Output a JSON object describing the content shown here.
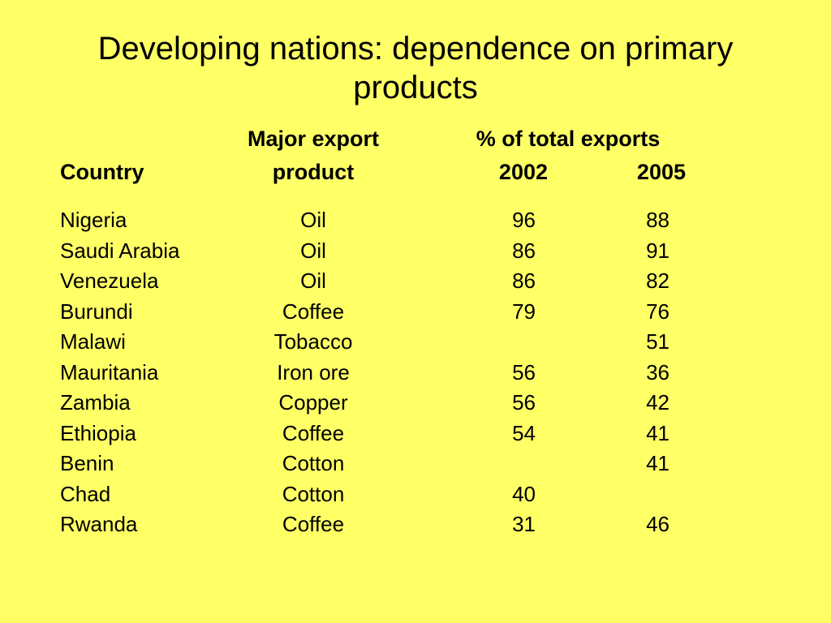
{
  "colors": {
    "background": "#FFFF66",
    "text": "#000000"
  },
  "slide": {
    "title_line1": "Developing nations: dependence on primary",
    "title_line2": "products"
  },
  "table": {
    "headers": {
      "major_export_line1": "Major export",
      "major_export_line2": "product",
      "pct_total_exports": "% of total exports",
      "country": "Country",
      "year_2002": "2002",
      "year_2005": "2005"
    },
    "rows": [
      {
        "country": "Nigeria",
        "product": "Oil",
        "y2002": "96",
        "y2005": "88"
      },
      {
        "country": "Saudi Arabia",
        "product": "Oil",
        "y2002": "86",
        "y2005": "91"
      },
      {
        "country": "Venezuela",
        "product": "Oil",
        "y2002": "86",
        "y2005": "82"
      },
      {
        "country": "Burundi",
        "product": "Coffee",
        "y2002": "79",
        "y2005": "76"
      },
      {
        "country": "Malawi",
        "product": "Tobacco",
        "y2002": "",
        "y2005": "51"
      },
      {
        "country": "Mauritania",
        "product": "Iron ore",
        "y2002": "56",
        "y2005": "36"
      },
      {
        "country": "Zambia",
        "product": "Copper",
        "y2002": "56",
        "y2005": "42"
      },
      {
        "country": "Ethiopia",
        "product": "Coffee",
        "y2002": "54",
        "y2005": "41"
      },
      {
        "country": "Benin",
        "product": "Cotton",
        "y2002": "",
        "y2005": "41"
      },
      {
        "country": "Chad",
        "product": "Cotton",
        "y2002": "40",
        "y2005": ""
      },
      {
        "country": "Rwanda",
        "product": "Coffee",
        "y2002": "31",
        "y2005": "46"
      }
    ]
  }
}
